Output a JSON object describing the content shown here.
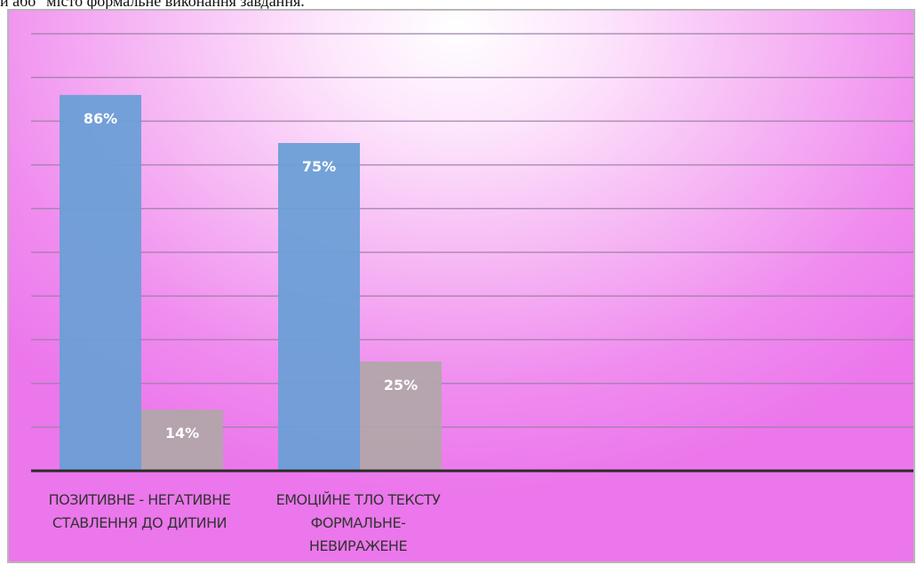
{
  "header": {
    "text": "и або \"місто формальне виконання завдання."
  },
  "chart_data": {
    "type": "bar",
    "categories": [
      [
        "ПОЗИТИВНЕ - НЕГАТИВНЕ",
        "СТАВЛЕННЯ ДО ДИТИНИ"
      ],
      [
        "ЕМОЦІЙНЕ ТЛО ТЕКСТУ",
        "ФОРМАЛЬНЕ-",
        "НЕВИРАЖЕНЕ"
      ]
    ],
    "series": [
      {
        "values": [
          86,
          75
        ],
        "labels": [
          "86%",
          "75%"
        ],
        "color": "#6b9fd6"
      },
      {
        "values": [
          14,
          25
        ],
        "labels": [
          "14%",
          "25%"
        ],
        "color": "#b2a5aa"
      }
    ],
    "ylim": [
      0,
      100
    ],
    "grid": true,
    "legend": "none",
    "colors": {
      "gridline": "#9b7fa5",
      "axis": "#2b2b2b",
      "data_label": "#ffffff"
    }
  }
}
